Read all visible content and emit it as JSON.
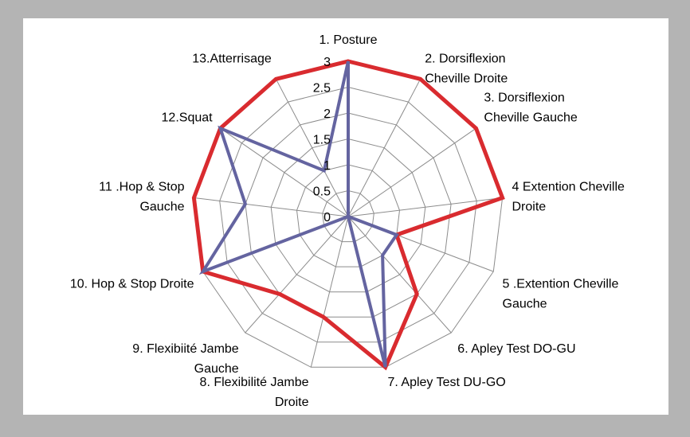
{
  "chart_data": {
    "type": "radar",
    "categories": [
      "1. Posture",
      "2. Dorsiflexion Cheville Droite",
      "3. Dorsiflexion Cheville Gauche",
      "4  Extention Cheville Droite",
      "5 .Extention Cheville Gauche",
      "6. Apley Test  DO-GU",
      "7. Apley Test  DU-GO",
      "8. Flexibilité Jambe Droite",
      "9. Flexibiité Jambe Gauche",
      "10. Hop & Stop  Droite",
      "11 .Hop & Stop Gauche",
      "12.Squat",
      "13.Atterrisage"
    ],
    "category_lines": [
      [
        "1. Posture"
      ],
      [
        "2. Dorsiflexion",
        "Cheville Droite"
      ],
      [
        "3. Dorsiflexion",
        "Cheville Gauche"
      ],
      [
        "4  Extention Cheville",
        "Droite"
      ],
      [
        "5 .Extention Cheville",
        "Gauche"
      ],
      [
        "6. Apley Test  DO-GU"
      ],
      [
        "7. Apley Test  DU-GO"
      ],
      [
        "8. Flexibilité Jambe",
        "Droite"
      ],
      [
        "9. Flexibiité Jambe",
        "Gauche"
      ],
      [
        "10. Hop & Stop  Droite"
      ],
      [
        "11 .Hop & Stop",
        "Gauche"
      ],
      [
        "12.Squat"
      ],
      [
        "13.Atterrisage"
      ]
    ],
    "series": [
      {
        "values": [
          3,
          3,
          3,
          3,
          1,
          2,
          3,
          2,
          2,
          3,
          3,
          3,
          3
        ],
        "color": "#d92b2f"
      },
      {
        "values": [
          3,
          0,
          0,
          0,
          1,
          1,
          3,
          0,
          0,
          3,
          2,
          3,
          1
        ],
        "color": "#6464a0"
      }
    ],
    "rlim": [
      0,
      3
    ],
    "ticks": [
      "0",
      "0.5",
      "1",
      "1.5",
      "2",
      "2.5",
      "3"
    ],
    "grid": true,
    "legend": "none"
  }
}
